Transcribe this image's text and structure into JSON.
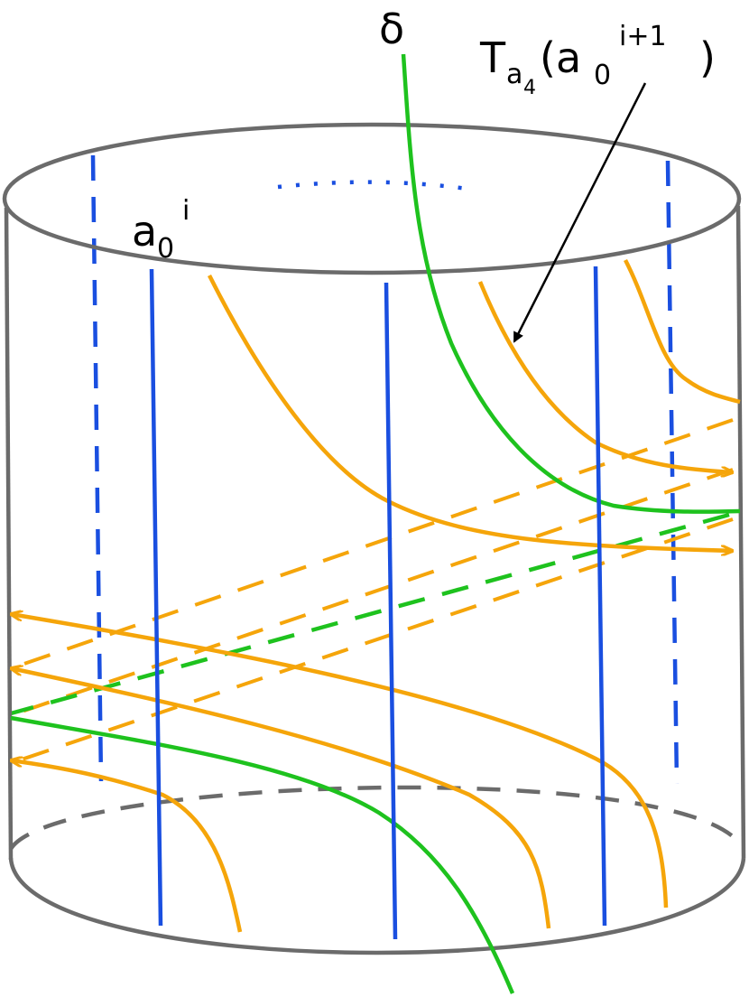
{
  "labels": {
    "delta": "δ",
    "a0i_base": "a",
    "a0i_sub": "0",
    "a0i_sup": "i",
    "t_base": "T",
    "t_sub_letter": "a",
    "t_sub_index": "4",
    "t_open_paren": "(a",
    "t_inner_sub": "0",
    "t_inner_sup": "i+1",
    "t_close_paren": ")"
  },
  "colors": {
    "cylinder": "#6b6b6b",
    "blue": "#1a4fe0",
    "orange": "#f5a50a",
    "green": "#1ec21e",
    "arrow": "#000000"
  }
}
